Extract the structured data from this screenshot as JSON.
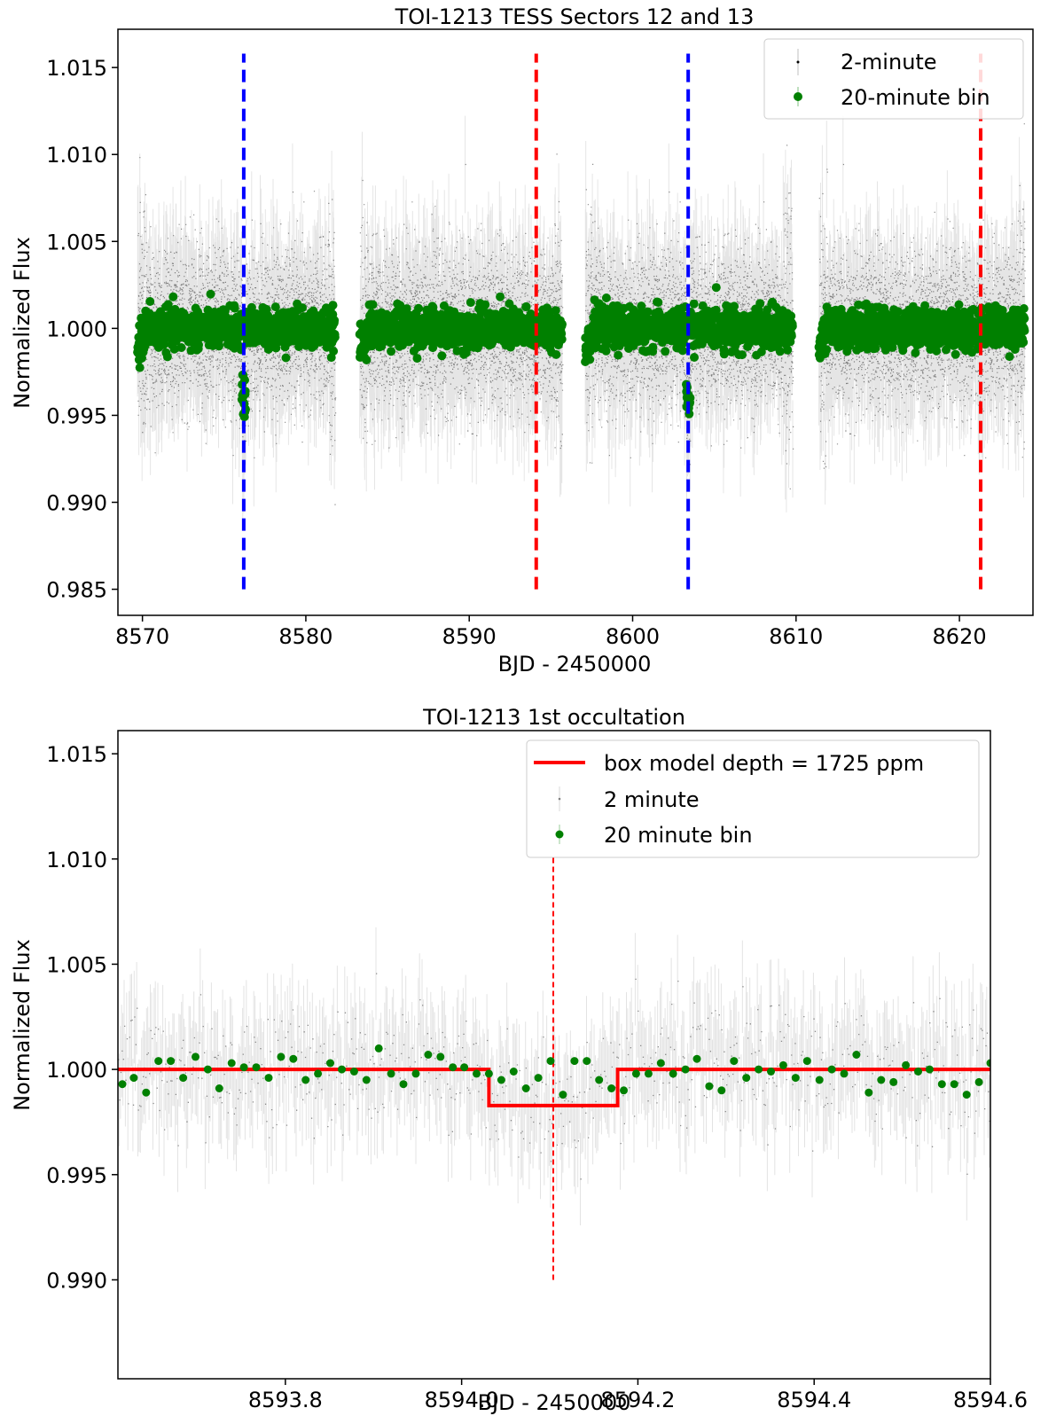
{
  "chart_data": [
    {
      "type": "scatter",
      "title": "TOI-1213 TESS Sectors 12 and 13",
      "xlabel": "BJD - 2450000",
      "ylabel": "Normalized Flux",
      "xlim": [
        8568.5,
        8624.5
      ],
      "ylim": [
        0.9835,
        1.0172
      ],
      "xticks": [
        8570,
        8580,
        8590,
        8600,
        8610,
        8620
      ],
      "xtick_labels": [
        "8570",
        "8580",
        "8590",
        "8600",
        "8610",
        "8620"
      ],
      "yticks": [
        0.985,
        0.99,
        0.995,
        1.0,
        1.005,
        1.01,
        1.015
      ],
      "ytick_labels": [
        "0.985",
        "0.990",
        "0.995",
        "1.000",
        "1.005",
        "1.010",
        "1.015"
      ],
      "grid": false,
      "legend_position": "top-right",
      "segments": [
        [
          8569.7,
          8581.8
        ],
        [
          8583.3,
          8595.7
        ],
        [
          8597.1,
          8609.8
        ],
        [
          8611.4,
          8624.0
        ]
      ],
      "series": [
        {
          "name": "2-minute",
          "kind": "points",
          "color": "#000000",
          "scatter_sigma": 0.0022,
          "errorbar": 0.0028
        },
        {
          "name": "20-minute bin",
          "kind": "points",
          "color": "#008000",
          "scatter_sigma": 0.00055
        }
      ],
      "vlines": [
        {
          "x": 8576.2,
          "y": [
            0.985,
            1.0158
          ],
          "color": "#0000ff",
          "style": "dashed"
        },
        {
          "x": 8594.1,
          "y": [
            0.985,
            1.0158
          ],
          "color": "#ff0000",
          "style": "dashed"
        },
        {
          "x": 8603.4,
          "y": [
            0.985,
            1.0158
          ],
          "color": "#0000ff",
          "style": "dashed"
        },
        {
          "x": 8621.3,
          "y": [
            0.985,
            1.0158
          ],
          "color": "#ff0000",
          "style": "dashed"
        }
      ],
      "transits": [
        8576.2,
        8603.4
      ],
      "transit_depth": 0.004
    },
    {
      "type": "scatter",
      "title": "TOI-1213 1st occultation",
      "xlabel": "BJD - 2450000",
      "ylabel": "Normalized Flux",
      "xlim": [
        8593.61,
        8594.6
      ],
      "ylim": [
        0.9853,
        1.0161
      ],
      "xticks": [
        8593.8,
        8594.0,
        8594.2,
        8594.4,
        8594.6
      ],
      "xtick_labels": [
        "8593.8",
        "8594.0",
        "8594.2",
        "8594.4",
        "8594.6"
      ],
      "yticks": [
        0.99,
        0.995,
        1.0,
        1.005,
        1.01,
        1.015
      ],
      "ytick_labels": [
        "0.990",
        "0.995",
        "1.000",
        "1.005",
        "1.010",
        "1.015"
      ],
      "grid": false,
      "legend_position": "top-right",
      "series": [
        {
          "name": "box model depth = 1725 ppm",
          "kind": "line",
          "color": "#ff0000",
          "x": [
            8593.61,
            8594.031,
            8594.031,
            8594.177,
            8594.177,
            8594.6
          ],
          "y": [
            1.0,
            1.0,
            0.99828,
            0.99828,
            1.0,
            1.0
          ]
        },
        {
          "name": "2 minute",
          "kind": "points",
          "color": "#808080",
          "scatter_sigma": 0.0015,
          "errorbar": 0.0022
        },
        {
          "name": "20 minute bin",
          "kind": "points",
          "color": "#008000",
          "x": [
            8593.615,
            8593.628,
            8593.642,
            8593.656,
            8593.67,
            8593.684,
            8593.698,
            8593.712,
            8593.725,
            8593.739,
            8593.753,
            8593.767,
            8593.781,
            8593.795,
            8593.809,
            8593.823,
            8593.837,
            8593.851,
            8593.864,
            8593.878,
            8593.892,
            8593.906,
            8593.92,
            8593.934,
            8593.948,
            8593.962,
            8593.976,
            8593.99,
            8594.003,
            8594.017,
            8594.031,
            8594.045,
            8594.059,
            8594.073,
            8594.087,
            8594.101,
            8594.115,
            8594.128,
            8594.142,
            8594.156,
            8594.17,
            8594.184,
            8594.198,
            8594.212,
            8594.226,
            8594.24,
            8594.254,
            8594.267,
            8594.281,
            8594.295,
            8594.309,
            8594.323,
            8594.337,
            8594.351,
            8594.365,
            8594.379,
            8594.392,
            8594.406,
            8594.42,
            8594.434,
            8594.448,
            8594.462,
            8594.476,
            8594.49,
            8594.504,
            8594.518,
            8594.531,
            8594.545,
            8594.559,
            8594.573,
            8594.587,
            8594.6
          ],
          "y": [
            0.9993,
            0.9996,
            0.9989,
            1.0004,
            1.0004,
            0.9996,
            1.0006,
            1.0,
            0.9991,
            1.0003,
            1.0001,
            1.0001,
            0.9996,
            1.0006,
            1.0005,
            0.9995,
            0.9998,
            1.0003,
            1.0,
            0.9999,
            0.9995,
            1.001,
            0.9998,
            0.9993,
            0.9998,
            1.0007,
            1.0006,
            1.0001,
            1.0001,
            0.9998,
            0.9998,
            0.9995,
            0.9999,
            0.9991,
            0.9996,
            1.0004,
            0.9988,
            1.0004,
            1.0004,
            0.9995,
            0.9991,
            0.999,
            0.9998,
            0.9998,
            1.0003,
            0.9998,
            1.0,
            1.0005,
            0.9992,
            0.999,
            1.0004,
            0.9996,
            1.0,
            0.9999,
            1.0002,
            0.9996,
            1.0004,
            0.9995,
            1.0,
            0.9998,
            1.0007,
            0.9989,
            0.9995,
            0.9994,
            1.0002,
            0.9999,
            1.0,
            0.9993,
            0.9993,
            0.9988,
            0.9994,
            1.0003
          ]
        }
      ],
      "vlines": [
        {
          "x": 8594.104,
          "y": [
            0.99,
            1.0101
          ],
          "color": "#ff0000",
          "style": "dashed"
        }
      ]
    }
  ]
}
